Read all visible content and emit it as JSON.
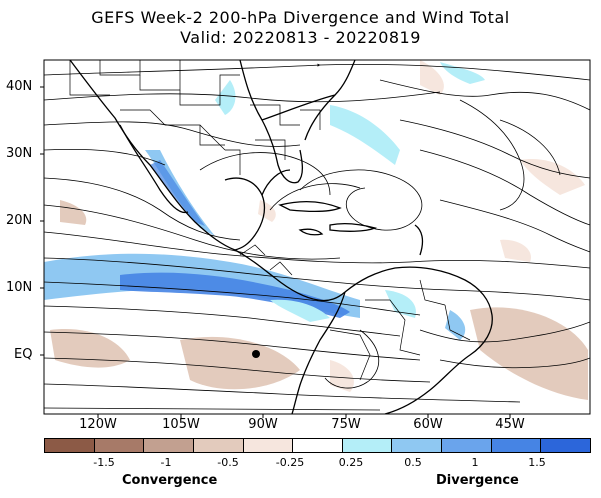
{
  "title": "GEFS Week-2 200-hPa Divergence and Wind Total",
  "subtitle": "Valid: 20220813 - 20220819",
  "lat_labels": [
    "40N",
    "30N",
    "20N",
    "10N",
    "EQ"
  ],
  "lon_labels": [
    "120W",
    "105W",
    "90W",
    "75W",
    "60W",
    "45W"
  ],
  "colorbar": {
    "bins": [
      {
        "color": "#8c5a46"
      },
      {
        "color": "#a77a68"
      },
      {
        "color": "#c2a090"
      },
      {
        "color": "#e3cbbd"
      },
      {
        "color": "#f6e6de"
      },
      {
        "color": "#ffffff"
      },
      {
        "color": "#b4eef8"
      },
      {
        "color": "#8fc8f2"
      },
      {
        "color": "#6aa4ec"
      },
      {
        "color": "#4684e4"
      },
      {
        "color": "#2c66da"
      }
    ],
    "tick_labels": [
      "-1.5",
      "-1",
      "-0.5",
      "-0.25",
      "0.25",
      "0.5",
      "1",
      "1.5"
    ],
    "left_label": "Convergence",
    "right_label": "Divergence"
  }
}
